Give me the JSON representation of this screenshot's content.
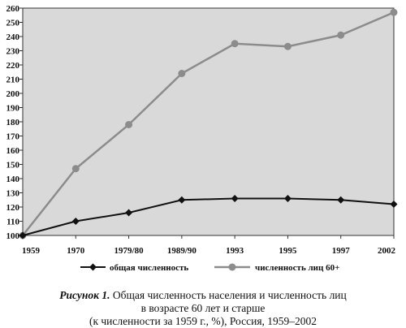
{
  "chart_data": {
    "type": "line",
    "categories": [
      "1959",
      "1970",
      "1979/80",
      "1989/90",
      "1993",
      "1995",
      "1997",
      "2002"
    ],
    "ylim": [
      100,
      260
    ],
    "yticks": [
      100,
      110,
      120,
      130,
      140,
      150,
      160,
      170,
      180,
      190,
      200,
      210,
      220,
      230,
      240,
      250,
      260
    ],
    "grid": false,
    "legend_position": "bottom",
    "series": [
      {
        "name": "общая численность",
        "color": "#111111",
        "marker": "diamond",
        "values": [
          100,
          110,
          116,
          125,
          126,
          126,
          125,
          122
        ]
      },
      {
        "name": "численность лиц 60+",
        "color": "#8c8c8c",
        "marker": "circle",
        "values": [
          100,
          147,
          178,
          214,
          235,
          233,
          241,
          257
        ]
      }
    ],
    "plot_background": "#d9d9d9"
  },
  "caption": {
    "lead": "Рисунок 1.",
    "line1_rest": " Общая численность населения и численность лиц",
    "line2": "в возрасте 60 лет и старше",
    "line3": "(к численности за 1959 г., %), Россия, 1959–2002"
  }
}
